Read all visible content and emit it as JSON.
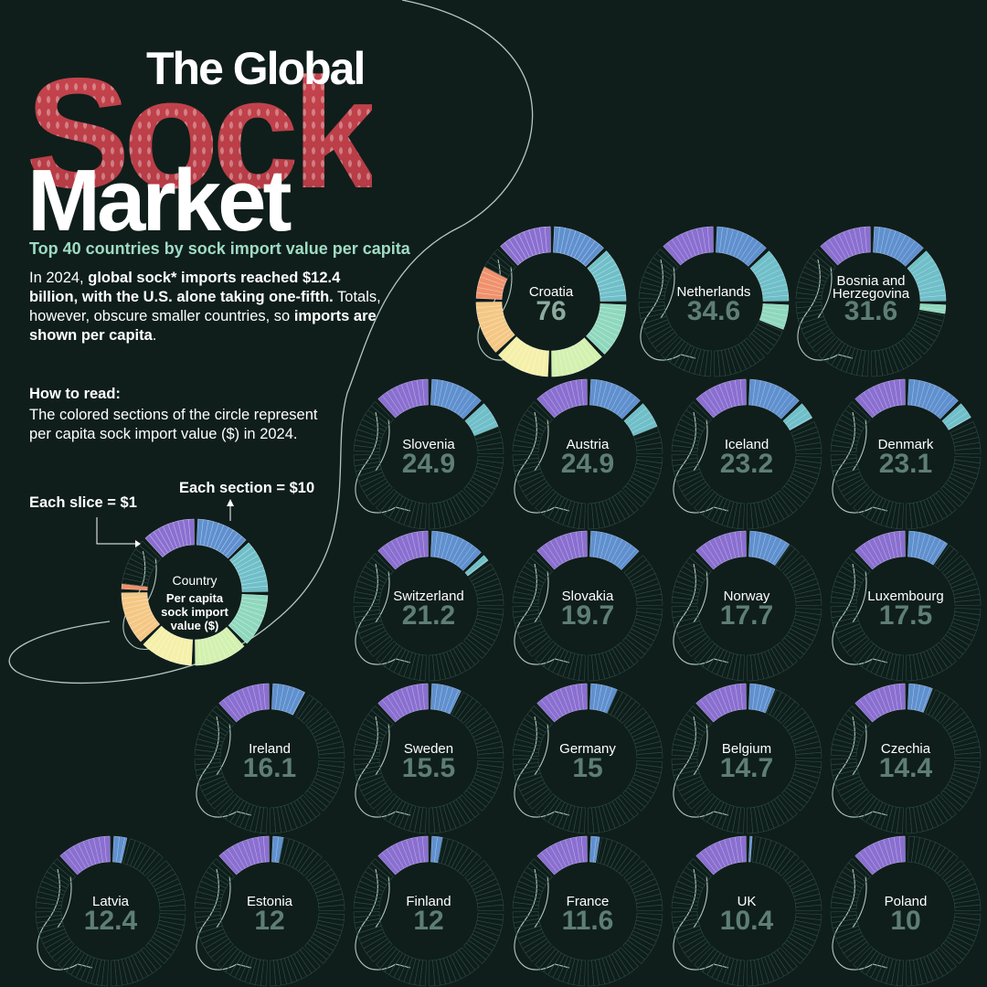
{
  "title": {
    "line1": "The Global",
    "line2": "Sock",
    "line3": "Market"
  },
  "subtitle": "Top 40 countries by sock import value per capita",
  "intro": {
    "p1": "In 2024, ",
    "b1": "global sock* imports reached $12.4 billion, with the U.S. alone taking one-fifth.",
    "p2": " Totals, however, obscure smaller countries, so ",
    "b2": "imports are shown per capita",
    "p3": "."
  },
  "how_to": {
    "heading": "How to read:",
    "text": "The colored sections of the circle represent per capita sock import value ($) in 2024.",
    "each_slice": "Each slice = $1",
    "each_section": "Each section = $10",
    "legend_country": "Country",
    "legend_value_lines": [
      "Per capita",
      "sock import",
      "value ($)"
    ]
  },
  "chart_data": {
    "type": "radial-bar",
    "title": "Top 40 countries by sock import value per capita",
    "unit": "$ per capita, 2024",
    "max_per_circle": 80,
    "slice_value": 1,
    "section_value": 10,
    "section_colors": [
      "#8a6fd1",
      "#5f90cf",
      "#6fbfc9",
      "#8ed8bd",
      "#d2f1ae",
      "#f5f0a8",
      "#f4c783",
      "#f0916c",
      "#d9375d"
    ],
    "legend_example_value": 71,
    "countries": [
      {
        "name": [
          "Croatia"
        ],
        "value": 76
      },
      {
        "name": [
          "Netherlands"
        ],
        "value": 34.6
      },
      {
        "name": [
          "Bosnia and",
          "Herzegovina"
        ],
        "value": 31.6
      },
      {
        "name": [
          "Slovenia"
        ],
        "value": 24.9
      },
      {
        "name": [
          "Austria"
        ],
        "value": 24.9
      },
      {
        "name": [
          "Iceland"
        ],
        "value": 23.2
      },
      {
        "name": [
          "Denmark"
        ],
        "value": 23.1
      },
      {
        "name": [
          "Switzerland"
        ],
        "value": 21.2
      },
      {
        "name": [
          "Slovakia"
        ],
        "value": 19.7
      },
      {
        "name": [
          "Norway"
        ],
        "value": 17.7
      },
      {
        "name": [
          "Luxembourg"
        ],
        "value": 17.5
      },
      {
        "name": [
          "Ireland"
        ],
        "value": 16.1
      },
      {
        "name": [
          "Sweden"
        ],
        "value": 15.5
      },
      {
        "name": [
          "Germany"
        ],
        "value": 15
      },
      {
        "name": [
          "Belgium"
        ],
        "value": 14.7
      },
      {
        "name": [
          "Czechia"
        ],
        "value": 14.4
      },
      {
        "name": [
          "Latvia"
        ],
        "value": 12.4
      },
      {
        "name": [
          "Estonia"
        ],
        "value": 12
      },
      {
        "name": [
          "Finland"
        ],
        "value": 12
      },
      {
        "name": [
          "France"
        ],
        "value": 11.6
      },
      {
        "name": [
          "UK"
        ],
        "value": 10.4
      },
      {
        "name": [
          "Poland"
        ],
        "value": 10
      }
    ]
  }
}
